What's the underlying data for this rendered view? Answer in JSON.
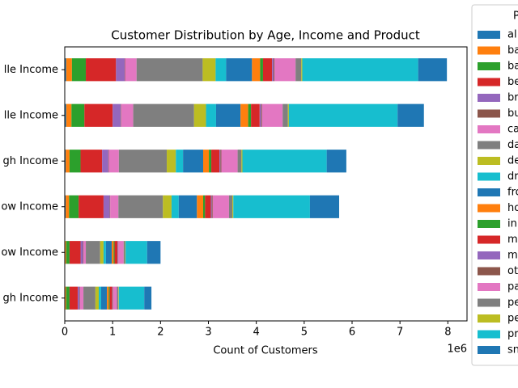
{
  "chart_data": {
    "type": "stacked_barh",
    "title": "Customer Distribution by Age, Income and Product",
    "xlabel": "Count of Customers",
    "x_offset_label": "1e6",
    "legend_title": "P",
    "legend": "outside right",
    "categories": [
      "lle Income",
      "lle Income",
      "gh Income",
      "ow Income",
      "ow Income",
      "gh Income"
    ],
    "xlim": [
      0,
      8400000
    ],
    "xticks": [
      {
        "value": 0,
        "label": "0"
      },
      {
        "value": 1000000,
        "label": "1"
      },
      {
        "value": 2000000,
        "label": "2"
      },
      {
        "value": 3000000,
        "label": "3"
      },
      {
        "value": 4000000,
        "label": "4"
      },
      {
        "value": 5000000,
        "label": "5"
      },
      {
        "value": 6000000,
        "label": "6"
      },
      {
        "value": 7000000,
        "label": "7"
      },
      {
        "value": 8000000,
        "label": "8"
      }
    ],
    "series": [
      {
        "name": "al",
        "color": "#1f77b4",
        "values": [
          30000,
          30000,
          20000,
          20000,
          10000,
          10000
        ]
      },
      {
        "name": "ba",
        "color": "#ff7f0e",
        "values": [
          120000,
          110000,
          80000,
          70000,
          20000,
          20000
        ]
      },
      {
        "name": "ba",
        "color": "#2ca02c",
        "values": [
          290000,
          270000,
          230000,
          200000,
          70000,
          70000
        ]
      },
      {
        "name": "be",
        "color": "#d62728",
        "values": [
          630000,
          590000,
          450000,
          520000,
          230000,
          170000
        ]
      },
      {
        "name": "br",
        "color": "#9467bd",
        "values": [
          180000,
          170000,
          130000,
          130000,
          50000,
          40000
        ]
      },
      {
        "name": "bu",
        "color": "#8c564b",
        "values": [
          10000,
          10000,
          10000,
          10000,
          10000,
          10000
        ]
      },
      {
        "name": "ca",
        "color": "#e377c2",
        "values": [
          240000,
          250000,
          210000,
          170000,
          50000,
          70000
        ]
      },
      {
        "name": "da",
        "color": "#7f7f7f",
        "values": [
          1380000,
          1270000,
          1000000,
          930000,
          300000,
          250000
        ]
      },
      {
        "name": "de",
        "color": "#bcbd22",
        "values": [
          270000,
          250000,
          190000,
          180000,
          70000,
          70000
        ]
      },
      {
        "name": "dr",
        "color": "#17becf",
        "values": [
          220000,
          210000,
          150000,
          150000,
          50000,
          50000
        ]
      },
      {
        "name": "fro",
        "color": "#1f77b4",
        "values": [
          540000,
          510000,
          420000,
          380000,
          120000,
          120000
        ]
      },
      {
        "name": "ho",
        "color": "#ff7f0e",
        "values": [
          170000,
          160000,
          120000,
          130000,
          40000,
          40000
        ]
      },
      {
        "name": "in",
        "color": "#2ca02c",
        "values": [
          60000,
          60000,
          50000,
          40000,
          20000,
          20000
        ]
      },
      {
        "name": "m",
        "color": "#d62728",
        "values": [
          190000,
          180000,
          170000,
          120000,
          60000,
          50000
        ]
      },
      {
        "name": "m",
        "color": "#9467bd",
        "values": [
          30000,
          30000,
          20000,
          20000,
          10000,
          10000
        ]
      },
      {
        "name": "ot",
        "color": "#8c564b",
        "values": [
          20000,
          20000,
          20000,
          20000,
          10000,
          10000
        ]
      },
      {
        "name": "pa",
        "color": "#e377c2",
        "values": [
          440000,
          430000,
          340000,
          340000,
          110000,
          80000
        ]
      },
      {
        "name": "pe",
        "color": "#7f7f7f",
        "values": [
          120000,
          110000,
          80000,
          70000,
          30000,
          30000
        ]
      },
      {
        "name": "pe",
        "color": "#bcbd22",
        "values": [
          20000,
          20000,
          20000,
          20000,
          10000,
          10000
        ]
      },
      {
        "name": "pr",
        "color": "#17becf",
        "values": [
          2420000,
          2270000,
          1760000,
          1600000,
          450000,
          530000
        ]
      },
      {
        "name": "sn",
        "color": "#1f77b4",
        "values": [
          600000,
          550000,
          410000,
          610000,
          280000,
          150000
        ]
      }
    ]
  }
}
